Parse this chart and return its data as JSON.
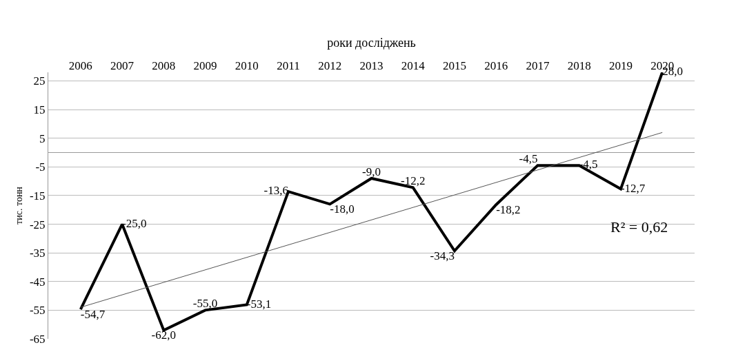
{
  "chart_data": {
    "type": "line",
    "xlabel": "роки досліджень",
    "ylabel": "тис. тонн",
    "categories": [
      "2006",
      "2007",
      "2008",
      "2009",
      "2010",
      "2011",
      "2012",
      "2013",
      "2014",
      "2015",
      "2016",
      "2017",
      "2018",
      "2019",
      "2020"
    ],
    "series": [
      {
        "color": "#000000",
        "values": [
          -54.7,
          -25.0,
          -62.0,
          -55.0,
          -53.1,
          -13.6,
          -18.0,
          -9.0,
          -12.2,
          -34.3,
          -18.2,
          -4.5,
          -4.5,
          -12.7,
          28.0
        ],
        "value_labels": [
          "-54,7",
          "-25,0",
          "-62,0",
          "-55,0",
          "-53,1",
          "-13,6",
          "-18,0",
          "-9,0",
          "-12,2",
          "-34,3",
          "-18,2",
          "-4,5",
          "-4,5",
          "-12,7",
          "28,0"
        ]
      },
      {
        "type": "line",
        "color": "#555555",
        "values": [
          -54,
          null,
          null,
          null,
          null,
          null,
          null,
          null,
          null,
          null,
          null,
          null,
          null,
          null,
          7
        ]
      }
    ],
    "ylim": [
      -65,
      28
    ],
    "yticks": [
      -65,
      -55,
      -45,
      -35,
      -25,
      -15,
      -5,
      5,
      15,
      25
    ],
    "grid": "y",
    "marker": "none",
    "annotations": [
      "R² = 0,62"
    ]
  }
}
